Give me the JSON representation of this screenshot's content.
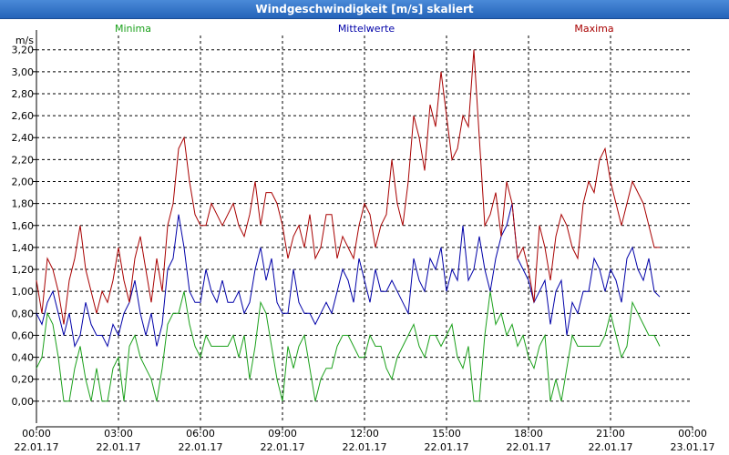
{
  "window": {
    "title": "Windgeschwindigkeit [m/s] skaliert"
  },
  "chart_data": {
    "type": "line",
    "title": "Windgeschwindigkeit [m/s] skaliert",
    "ylabel": "m/s",
    "xlabel": "",
    "ylim": [
      -0.2,
      3.33
    ],
    "xlim": [
      0,
      24
    ],
    "grid": true,
    "legend_position": "top",
    "y_ticks": [
      "0,00",
      "0,20",
      "0,40",
      "0,60",
      "0,80",
      "1,00",
      "1,20",
      "1,40",
      "1,60",
      "1,80",
      "2,00",
      "2,20",
      "2,40",
      "2,60",
      "2,80",
      "3,00",
      "3,20"
    ],
    "x_ticks": [
      {
        "time": "00:00",
        "date": "22.01.17"
      },
      {
        "time": "03:00",
        "date": "22.01.17"
      },
      {
        "time": "06:00",
        "date": "22.01.17"
      },
      {
        "time": "09:00",
        "date": "22.01.17"
      },
      {
        "time": "12:00",
        "date": "22.01.17"
      },
      {
        "time": "15:00",
        "date": "22.01.17"
      },
      {
        "time": "18:00",
        "date": "22.01.17"
      },
      {
        "time": "21:00",
        "date": "22.01.17"
      },
      {
        "time": "00:00",
        "date": "23.01.17"
      }
    ],
    "x_hours": [
      0,
      0.2,
      0.4,
      0.6,
      0.8,
      1,
      1.2,
      1.4,
      1.6,
      1.8,
      2,
      2.2,
      2.4,
      2.6,
      2.8,
      3,
      3.2,
      3.4,
      3.6,
      3.8,
      4,
      4.2,
      4.4,
      4.6,
      4.8,
      5,
      5.2,
      5.4,
      5.6,
      5.8,
      6,
      6.2,
      6.4,
      6.6,
      6.8,
      7,
      7.2,
      7.4,
      7.6,
      7.8,
      8,
      8.2,
      8.4,
      8.6,
      8.8,
      9,
      9.2,
      9.4,
      9.6,
      9.8,
      10,
      10.2,
      10.4,
      10.6,
      10.8,
      11,
      11.2,
      11.4,
      11.6,
      11.8,
      12,
      12.2,
      12.4,
      12.6,
      12.8,
      13,
      13.2,
      13.4,
      13.6,
      13.8,
      14,
      14.2,
      14.4,
      14.6,
      14.8,
      15,
      15.2,
      15.4,
      15.6,
      15.8,
      16,
      16.2,
      16.4,
      16.6,
      16.8,
      17,
      17.2,
      17.4,
      17.6,
      17.8,
      18,
      18.2,
      18.4,
      18.6,
      18.8,
      19,
      19.2,
      19.4,
      19.6,
      19.8,
      20,
      20.2,
      20.4,
      20.6,
      20.8,
      21,
      21.2,
      21.4,
      21.6,
      21.8,
      22,
      22.2,
      22.4,
      22.6,
      22.8,
      23,
      23.2,
      23.4,
      23.6,
      23.8,
      24
    ],
    "series": [
      {
        "name": "Minima",
        "color": "#1aa01a",
        "values": [
          0.3,
          0.4,
          0.8,
          0.7,
          0.4,
          0,
          0,
          0.3,
          0.5,
          0.2,
          0,
          0.3,
          0,
          0,
          0.3,
          0.4,
          0,
          0.5,
          0.6,
          0.4,
          0.3,
          0.2,
          0,
          0.3,
          0.7,
          0.8,
          0.8,
          1.0,
          0.7,
          0.5,
          0.4,
          0.6,
          0.5,
          0.5,
          0.5,
          0.5,
          0.6,
          0.4,
          0.6,
          0.2,
          0.5,
          0.9,
          0.8,
          0.5,
          0.2,
          0,
          0.5,
          0.3,
          0.5,
          0.6,
          0.3,
          0,
          0.2,
          0.3,
          0.3,
          0.5,
          0.6,
          0.6,
          0.5,
          0.4,
          0.4,
          0.6,
          0.5,
          0.5,
          0.3,
          0.2,
          0.4,
          0.5,
          0.6,
          0.7,
          0.5,
          0.4,
          0.6,
          0.6,
          0.5,
          0.6,
          0.7,
          0.4,
          0.3,
          0.5,
          0,
          0,
          0.6,
          1.0,
          0.7,
          0.8,
          0.6,
          0.7,
          0.5,
          0.6,
          0.4,
          0.3,
          0.5,
          0.6,
          0,
          0.2,
          0,
          0.3,
          0.6,
          0.5,
          0.5,
          0.5,
          0.5,
          0.5,
          0.6,
          0.8,
          0.6,
          0.4,
          0.5,
          0.9,
          0.8,
          0.7,
          0.6,
          0.6,
          0.5
        ]
      },
      {
        "name": "Mittelwerte",
        "color": "#0000a8",
        "values": [
          0.8,
          0.7,
          0.9,
          1.0,
          0.8,
          0.6,
          0.8,
          0.5,
          0.6,
          0.9,
          0.7,
          0.6,
          0.6,
          0.5,
          0.7,
          0.6,
          0.8,
          0.9,
          1.1,
          0.8,
          0.6,
          0.8,
          0.5,
          0.7,
          1.2,
          1.3,
          1.7,
          1.4,
          1.0,
          0.9,
          0.9,
          1.2,
          1.0,
          0.9,
          1.1,
          0.9,
          0.9,
          1.0,
          0.8,
          0.9,
          1.2,
          1.4,
          1.1,
          1.3,
          0.9,
          0.8,
          0.8,
          1.2,
          0.9,
          0.8,
          0.8,
          0.7,
          0.8,
          0.9,
          0.8,
          1.0,
          1.2,
          1.1,
          0.9,
          1.3,
          1.1,
          0.9,
          1.2,
          1.0,
          1.0,
          1.1,
          1.0,
          0.9,
          0.8,
          1.3,
          1.1,
          1.0,
          1.3,
          1.2,
          1.4,
          1.0,
          1.2,
          1.1,
          1.6,
          1.1,
          1.2,
          1.5,
          1.2,
          1.0,
          1.3,
          1.5,
          1.6,
          1.8,
          1.3,
          1.2,
          1.1,
          0.9,
          1.0,
          1.1,
          0.7,
          1.0,
          1.1,
          0.6,
          0.9,
          0.8,
          1.0,
          1.0,
          1.3,
          1.2,
          1.0,
          1.2,
          1.1,
          0.9,
          1.3,
          1.4,
          1.2,
          1.1,
          1.3,
          1.0,
          0.95
        ]
      },
      {
        "name": "Maxima",
        "color": "#a80000",
        "values": [
          1.1,
          0.8,
          1.3,
          1.2,
          1.0,
          0.7,
          1.1,
          1.3,
          1.6,
          1.2,
          1.0,
          0.8,
          1.0,
          0.9,
          1.1,
          1.4,
          1.1,
          0.9,
          1.3,
          1.5,
          1.2,
          0.9,
          1.3,
          1.0,
          1.6,
          1.8,
          2.3,
          2.4,
          2.0,
          1.7,
          1.6,
          1.6,
          1.8,
          1.7,
          1.6,
          1.7,
          1.8,
          1.6,
          1.5,
          1.7,
          2.0,
          1.6,
          1.9,
          1.9,
          1.8,
          1.6,
          1.3,
          1.5,
          1.6,
          1.4,
          1.7,
          1.3,
          1.4,
          1.7,
          1.7,
          1.3,
          1.5,
          1.4,
          1.3,
          1.6,
          1.8,
          1.7,
          1.4,
          1.6,
          1.7,
          2.2,
          1.8,
          1.6,
          2.0,
          2.6,
          2.4,
          2.1,
          2.7,
          2.5,
          3.0,
          2.6,
          2.2,
          2.3,
          2.6,
          2.5,
          3.2,
          2.4,
          1.6,
          1.7,
          1.9,
          1.5,
          2.0,
          1.8,
          1.3,
          1.4,
          1.2,
          0.9,
          1.6,
          1.4,
          1.1,
          1.5,
          1.7,
          1.6,
          1.4,
          1.3,
          1.8,
          2.0,
          1.9,
          2.2,
          2.3,
          2.0,
          1.8,
          1.6,
          1.8,
          2.0,
          1.9,
          1.8,
          1.6,
          1.4,
          1.4
        ]
      }
    ]
  }
}
